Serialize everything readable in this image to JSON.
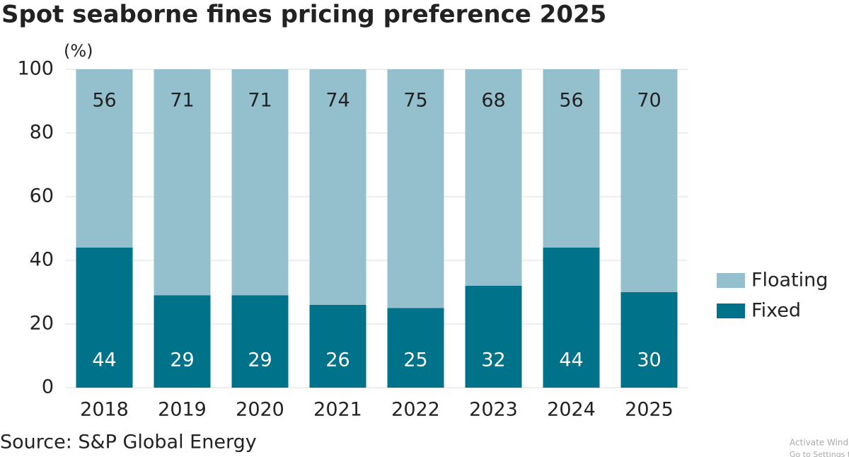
{
  "chart_data": {
    "type": "stacked_bar",
    "title": "Spot seaborne fines pricing preference 2025",
    "y_unit": "(%)",
    "categories": [
      "2018",
      "2019",
      "2020",
      "2021",
      "2022",
      "2023",
      "2024",
      "2025"
    ],
    "series": [
      {
        "name": "Fixed",
        "color": "#00728a",
        "values": [
          44,
          29,
          29,
          26,
          25,
          32,
          44,
          30
        ]
      },
      {
        "name": "Floating",
        "color": "#93c0cc",
        "values": [
          56,
          71,
          71,
          74,
          75,
          68,
          56,
          70
        ]
      }
    ],
    "ylim": [
      0,
      100
    ],
    "yticks": [
      0,
      20,
      40,
      60,
      80,
      100
    ],
    "grid": true,
    "legend_position": "right",
    "source": "Source: S&P Global Energy",
    "watermark": [
      "Activate Windows",
      "Go to Settings to activate Windows."
    ]
  }
}
